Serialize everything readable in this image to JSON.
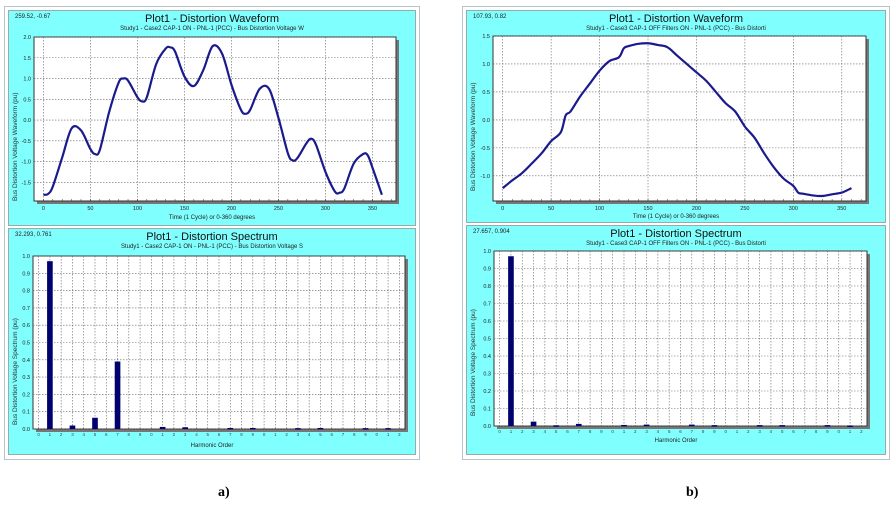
{
  "colors": {
    "panel_bg": "#80ffff",
    "line": "#1a1a8c",
    "bar": "#00006e"
  },
  "captions": {
    "a": "a)",
    "b": "b)"
  },
  "chart_data": [
    {
      "id": "a-wave",
      "type": "line",
      "coord": "259.52, -0.67",
      "title": "Plot1 - Distortion Waveform",
      "subtitle": "Study1 - Case2 CAP-1 ON - PNL-1 (PCC) - Bus Distortion Voltage W",
      "xlabel": "Time (1 Cycle) or 0-360 degrees",
      "ylabel": "Bus Distortion Voltage Waveform (pu)",
      "xlim": [
        -10,
        375
      ],
      "ylim": [
        -1.95,
        2.0
      ],
      "xticks": [
        0,
        50,
        100,
        150,
        200,
        250,
        300,
        350
      ],
      "yticks": [
        2.0,
        1.5,
        1.0,
        0.5,
        0.0,
        -0.5,
        -1.0,
        -1.5
      ],
      "grid": true,
      "x": [
        0,
        5,
        10,
        20,
        30,
        40,
        50,
        55,
        60,
        70,
        80,
        85,
        90,
        100,
        105,
        110,
        120,
        130,
        135,
        140,
        150,
        160,
        170,
        180,
        190,
        200,
        210,
        215,
        220,
        230,
        240,
        250,
        260,
        265,
        270,
        280,
        285,
        290,
        300,
        310,
        315,
        320,
        330,
        340,
        345,
        350,
        360
      ],
      "y": [
        -1.8,
        -1.78,
        -1.6,
        -0.9,
        -0.2,
        -0.25,
        -0.7,
        -0.82,
        -0.72,
        0.2,
        0.9,
        1.0,
        0.95,
        0.55,
        0.45,
        0.55,
        1.35,
        1.72,
        1.75,
        1.65,
        1.05,
        0.82,
        1.2,
        1.78,
        1.6,
        0.85,
        0.25,
        0.15,
        0.25,
        0.75,
        0.75,
        0.05,
        -0.8,
        -0.97,
        -0.92,
        -0.55,
        -0.45,
        -0.6,
        -1.25,
        -1.72,
        -1.75,
        -1.65,
        -1.05,
        -0.82,
        -0.85,
        -1.15,
        -1.8
      ]
    },
    {
      "id": "a-spec",
      "type": "bar",
      "coord": "32.293, 0.761",
      "title": "Plot1 - Distortion Spectrum",
      "subtitle": "Study1 - Case2 CAP-1 ON - PNL-1 (PCC) - Bus Distortion Voltage S",
      "xlabel": "Harmonic Order",
      "ylabel": "Bus Distortion Voltage Spectrum (pu)",
      "xlim": [
        0,
        33
      ],
      "ylim": [
        0,
        1.0
      ],
      "yticks": [
        1.0,
        0.9,
        0.8,
        0.7,
        0.6,
        0.5,
        0.4,
        0.3,
        0.2,
        0.1,
        0.0
      ],
      "grid": true,
      "xticklabels": [
        "0",
        "1",
        "2",
        "3",
        "4",
        "5",
        "6",
        "7",
        "8",
        "9",
        "0",
        "1",
        "2",
        "3",
        "4",
        "5",
        "6",
        "7",
        "8",
        "9",
        "0",
        "1",
        "2",
        "3",
        "4",
        "5",
        "6",
        "7",
        "8",
        "9",
        "0",
        "1",
        "2"
      ],
      "categories": [
        1,
        3,
        5,
        7,
        11,
        13,
        17,
        19,
        23,
        25,
        29,
        31
      ],
      "values": [
        0.97,
        0.02,
        0.065,
        0.39,
        0.012,
        0.01,
        0.006,
        0.006,
        0.005,
        0.006,
        0.005,
        0.005
      ]
    },
    {
      "id": "b-wave",
      "type": "line",
      "coord": "107.93, 0.82",
      "title": "Plot1 - Distortion Waveform",
      "subtitle": "Study1 - Case3 CAP-1 OFF Filters ON - PNL-1 (PCC) - Bus Distorti",
      "xlabel": "Time (1 Cycle) or 0-360 degrees",
      "ylabel": "Bus Distortion Voltage Waveform (pu)",
      "xlim": [
        -10,
        375
      ],
      "ylim": [
        -1.45,
        1.5
      ],
      "xticks": [
        0,
        50,
        100,
        150,
        200,
        250,
        300,
        350
      ],
      "yticks": [
        1.5,
        1.0,
        0.5,
        0.0,
        -0.5,
        -1.0
      ],
      "grid": true,
      "x": [
        0,
        10,
        20,
        30,
        40,
        50,
        60,
        65,
        70,
        80,
        90,
        100,
        110,
        120,
        125,
        130,
        140,
        150,
        160,
        170,
        180,
        190,
        200,
        210,
        220,
        230,
        240,
        250,
        260,
        270,
        280,
        290,
        300,
        305,
        310,
        320,
        330,
        340,
        350,
        360
      ],
      "y": [
        -1.22,
        -1.08,
        -0.95,
        -0.78,
        -0.6,
        -0.38,
        -0.22,
        0.08,
        0.15,
        0.42,
        0.65,
        0.88,
        1.05,
        1.12,
        1.28,
        1.32,
        1.36,
        1.37,
        1.34,
        1.3,
        1.15,
        1.0,
        0.85,
        0.7,
        0.5,
        0.3,
        0.15,
        -0.12,
        -0.32,
        -0.6,
        -0.85,
        -1.05,
        -1.18,
        -1.3,
        -1.32,
        -1.35,
        -1.36,
        -1.33,
        -1.3,
        -1.22
      ]
    },
    {
      "id": "b-spec",
      "type": "bar",
      "coord": "27.657, 0.904",
      "title": "Plot1 - Distortion Spectrum",
      "subtitle": "Study1 - Case3 CAP-1 OFF Filters ON - PNL-1 (PCC) - Bus Distorti",
      "xlabel": "Harmonic Order",
      "ylabel": "Bus Distortion Voltage Spectrum (pu)",
      "xlim": [
        0,
        33
      ],
      "ylim": [
        0,
        1.0
      ],
      "yticks": [
        1.0,
        0.9,
        0.8,
        0.7,
        0.6,
        0.5,
        0.4,
        0.3,
        0.2,
        0.1,
        0.0
      ],
      "grid": true,
      "xticklabels": [
        "0",
        "1",
        "2",
        "3",
        "4",
        "5",
        "6",
        "7",
        "8",
        "9",
        "0",
        "1",
        "2",
        "3",
        "4",
        "5",
        "6",
        "7",
        "8",
        "9",
        "0",
        "1",
        "2",
        "3",
        "4",
        "5",
        "6",
        "7",
        "8",
        "9",
        "0",
        "1",
        "2"
      ],
      "categories": [
        1,
        3,
        5,
        7,
        11,
        13,
        17,
        19,
        23,
        25,
        29,
        31
      ],
      "values": [
        0.97,
        0.025,
        0.004,
        0.012,
        0.006,
        0.008,
        0.008,
        0.005,
        0.005,
        0.005,
        0.005,
        0.003
      ]
    }
  ]
}
